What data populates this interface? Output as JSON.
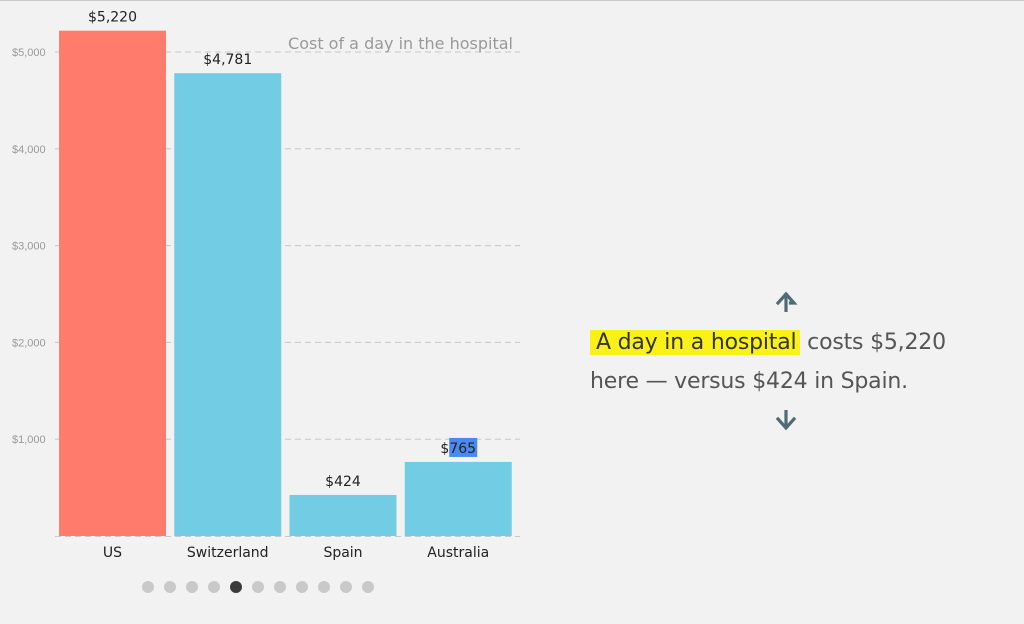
{
  "chart_data": {
    "type": "bar",
    "title": "Cost of a day in the hospital",
    "categories": [
      "US",
      "Switzerland",
      "Spain",
      "Australia"
    ],
    "values": [
      5220,
      4781,
      424,
      765
    ],
    "value_labels": [
      "$5,220",
      "$4,781",
      "$424",
      "$765"
    ],
    "bar_colors": [
      "#ff7b6b",
      "#72cde4",
      "#72cde4",
      "#72cde4"
    ],
    "ylim": [
      0,
      5000
    ],
    "yticks": [
      1000,
      2000,
      3000,
      4000,
      5000
    ],
    "ytick_labels": [
      "$1,000",
      "$2,000",
      "$3,000",
      "$4,000",
      "$5,000"
    ],
    "grid": true,
    "xlabel": "",
    "ylabel": ""
  },
  "story": {
    "highlight": "A day in a hospital",
    "rest_line1": " costs $5,220",
    "line2": "here — versus $424 in Spain."
  },
  "pager": {
    "count": 11,
    "active_index": 4
  },
  "colors": {
    "highlight": "#fbf118",
    "arrow": "#4f6b75",
    "us_bar": "#ff7b6b",
    "other_bar": "#72cde4",
    "selection": "#4a8af0"
  },
  "icons": {
    "up": "arrow-up-icon",
    "down": "arrow-down-icon"
  }
}
